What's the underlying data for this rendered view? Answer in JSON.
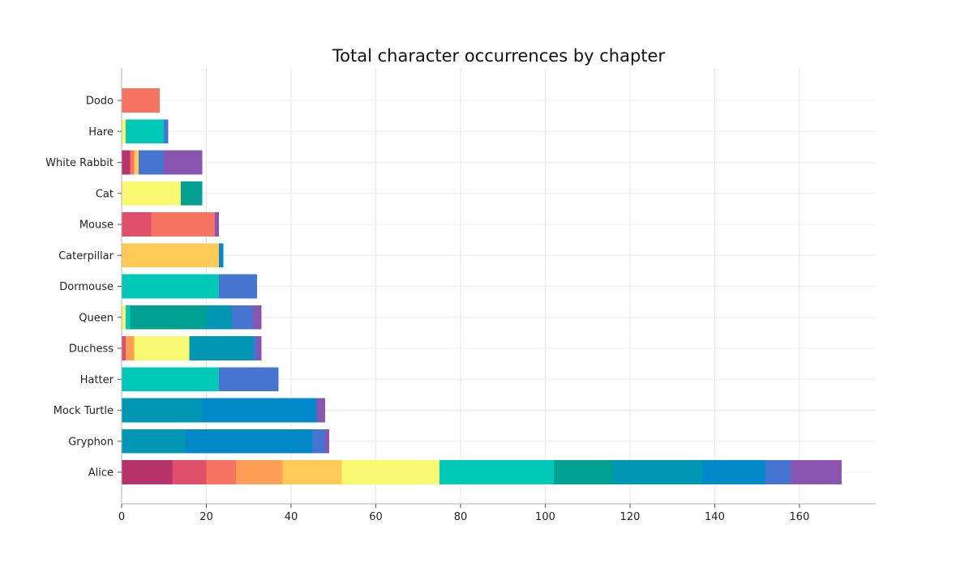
{
  "chart_data": {
    "type": "bar",
    "orientation": "horizontal",
    "stacked": true,
    "title": "Total character occurrences by chapter",
    "xlabel": "",
    "ylabel": "",
    "xlim": [
      0,
      178
    ],
    "xticks": [
      0,
      20,
      40,
      60,
      80,
      100,
      120,
      140,
      160
    ],
    "grid": true,
    "legend": "none",
    "categories": [
      "Alice",
      "Gryphon",
      "Mock Turtle",
      "Hatter",
      "Duchess",
      "Queen",
      "Dormouse",
      "Caterpillar",
      "Mouse",
      "Cat",
      "White Rabbit",
      "Hare",
      "Dodo"
    ],
    "colors": [
      "#b5336b",
      "#e04f6a",
      "#f87462",
      "#ff9f55",
      "#ffca58",
      "#f9f871",
      "#00c9b7",
      "#00a192",
      "#0096b4",
      "#0088c8",
      "#4675d1",
      "#8a55b0"
    ],
    "series": [
      {
        "values": [
          12,
          0,
          0,
          0,
          0,
          0,
          0,
          0,
          0,
          0,
          2,
          0,
          0
        ]
      },
      {
        "values": [
          8,
          0,
          0,
          0,
          1,
          0,
          0,
          0,
          7,
          0,
          0,
          0,
          0
        ]
      },
      {
        "values": [
          7,
          0,
          0,
          0,
          0,
          0,
          0,
          0,
          15,
          0,
          1,
          0,
          9
        ]
      },
      {
        "values": [
          11,
          0,
          0,
          0,
          2,
          0,
          0,
          0,
          0,
          0,
          0,
          0,
          0
        ]
      },
      {
        "values": [
          14,
          0,
          0,
          0,
          0,
          0,
          0,
          23,
          0,
          0,
          1,
          0,
          0
        ]
      },
      {
        "values": [
          23,
          0,
          0,
          0,
          13,
          1,
          0,
          0,
          0,
          14,
          0,
          1,
          0
        ]
      },
      {
        "values": [
          27,
          0,
          0,
          23,
          0,
          1,
          23,
          0,
          0,
          0,
          0,
          9,
          0
        ]
      },
      {
        "values": [
          14,
          0,
          0,
          0,
          0,
          18,
          0,
          0,
          0,
          5,
          0,
          0,
          0
        ]
      },
      {
        "values": [
          21,
          15,
          19,
          0,
          15,
          6,
          0,
          0,
          0,
          0,
          0,
          0,
          0
        ]
      },
      {
        "values": [
          15,
          30,
          27,
          0,
          0,
          0,
          0,
          1,
          0,
          0,
          0,
          0,
          0
        ]
      },
      {
        "values": [
          6,
          3,
          0,
          14,
          1,
          5,
          9,
          0,
          0,
          0,
          6,
          1,
          0
        ]
      },
      {
        "values": [
          12,
          1,
          2,
          0,
          1,
          2,
          0,
          0,
          1,
          0,
          9,
          0,
          0
        ]
      }
    ]
  }
}
